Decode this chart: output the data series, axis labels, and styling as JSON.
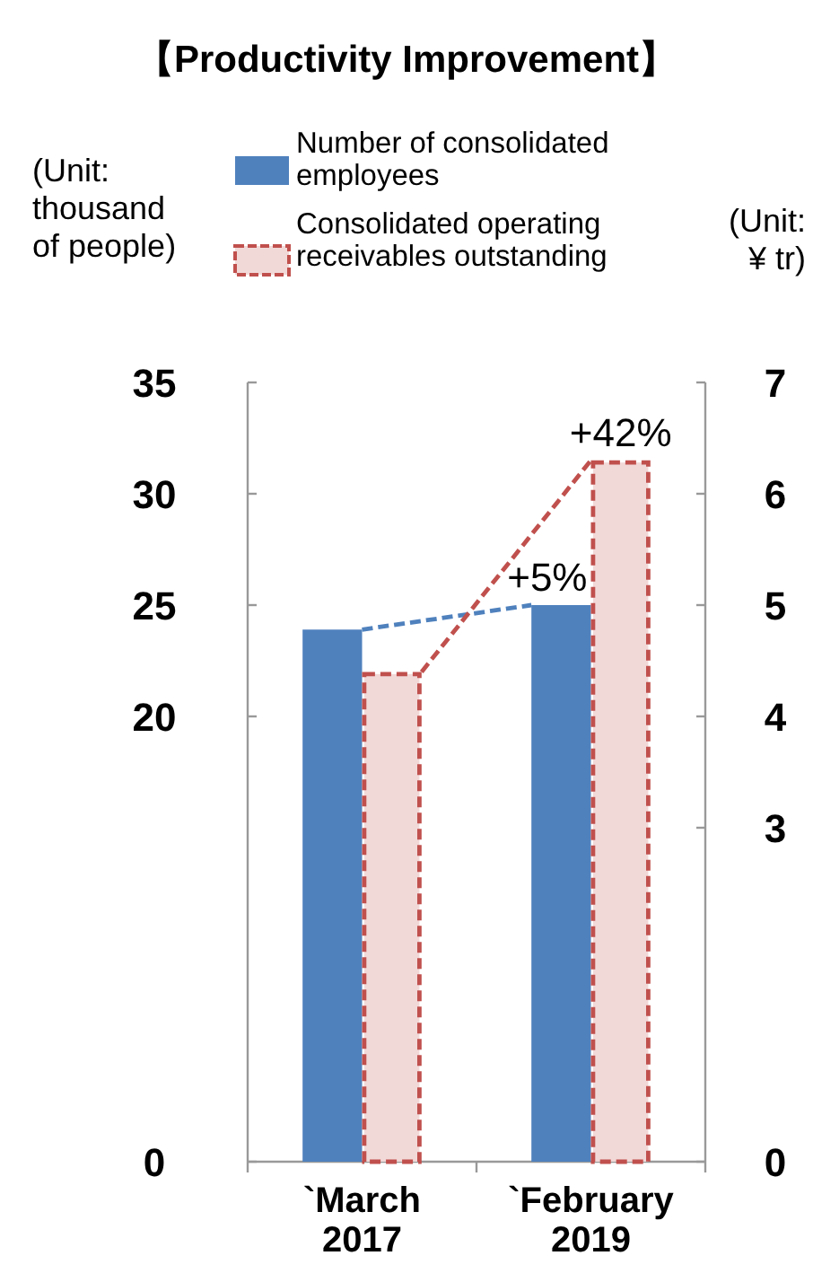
{
  "chart_data": {
    "type": "bar",
    "title": "【Productivity Improvement】",
    "categories": [
      "`March\n2017",
      "`February\n2019"
    ],
    "series": [
      {
        "name": "Number of consolidated\nemployees",
        "color": "#4f81bd",
        "values": [
          23.9,
          25.0
        ]
      },
      {
        "name": "Consolidated operating\nreceivables outstanding",
        "color": "#c0504d",
        "values": [
          4.4,
          6.3
        ],
        "axis": "y2",
        "line_style": "dashed"
      }
    ],
    "ylabel": "(Unit:\nthousand\nof people)",
    "y2label": "(Unit:\n¥ tr)",
    "ylim": [
      0,
      35
    ],
    "yticks": [
      0,
      20,
      25,
      30,
      35
    ],
    "y2lim": [
      0,
      7
    ],
    "y2ticks": [
      0,
      3,
      4,
      5,
      6,
      7
    ],
    "annotations": [
      {
        "text": "+5%",
        "x": "`February\n2019",
        "y": 25.0
      },
      "+42%"
    ],
    "legend": "top",
    "grid": false
  }
}
